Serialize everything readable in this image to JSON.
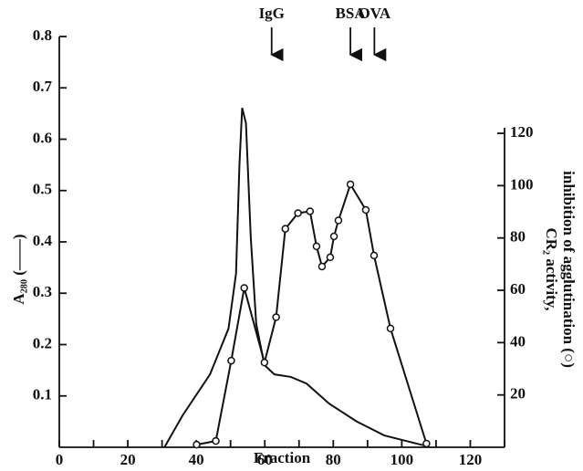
{
  "chart_data": {
    "type": "line",
    "xlabel": "Fraction",
    "ylabel": "A₂₈₀ (——)",
    "y2label": [
      "CR₂ activity,",
      "inhibition of agglutination (○)"
    ],
    "xlim": [
      0,
      130
    ],
    "xticks": [
      0,
      20,
      40,
      60,
      80,
      100,
      120
    ],
    "xminorticks": [
      10,
      30,
      50,
      70,
      90,
      110,
      130
    ],
    "ylim": [
      0,
      0.8
    ],
    "yticks": [
      0.1,
      0.2,
      0.3,
      0.4,
      0.5,
      0.6,
      0.7,
      0.8
    ],
    "y2lim": [
      0,
      157
    ],
    "y2ticks": [
      20,
      40,
      60,
      80,
      100,
      120
    ],
    "series": [
      {
        "color": "#111111",
        "marker": "none",
        "x": [
          30.7,
          36,
          44,
          49.4,
          51.6,
          52.6,
          53.4,
          54.5,
          55.9,
          57.5,
          59.9,
          62.8,
          67.6,
          72.2,
          78.8,
          86.9,
          94.9,
          105.6,
          108
        ],
        "values": [
          0,
          0.062,
          0.142,
          0.231,
          0.338,
          0.551,
          0.661,
          0.631,
          0.409,
          0.24,
          0.16,
          0.142,
          0.137,
          0.124,
          0.085,
          0.05,
          0.023,
          0.005,
          0.002
        ]
      },
      {
        "color": "#111111",
        "marker": "circle",
        "axis": "y2",
        "x": [
          40.1,
          45.7,
          50.2,
          54,
          59.9,
          63.3,
          66,
          69.7,
          73.2,
          75.1,
          76.7,
          79.1,
          80.2,
          81.5,
          85,
          89.5,
          91.9,
          96.7,
          107.2
        ],
        "values": [
          1,
          2.4,
          33.1,
          60.9,
          32.4,
          49.7,
          83.5,
          89.5,
          90.2,
          76.8,
          69.1,
          72.6,
          80.6,
          86.7,
          100.5,
          90.7,
          73.3,
          45.4,
          1.4
        ]
      }
    ],
    "annotations": [
      {
        "text": "IgG",
        "x": 62
      },
      {
        "text": "BSA",
        "x": 85
      },
      {
        "text": "OVA",
        "x": 92
      }
    ]
  }
}
